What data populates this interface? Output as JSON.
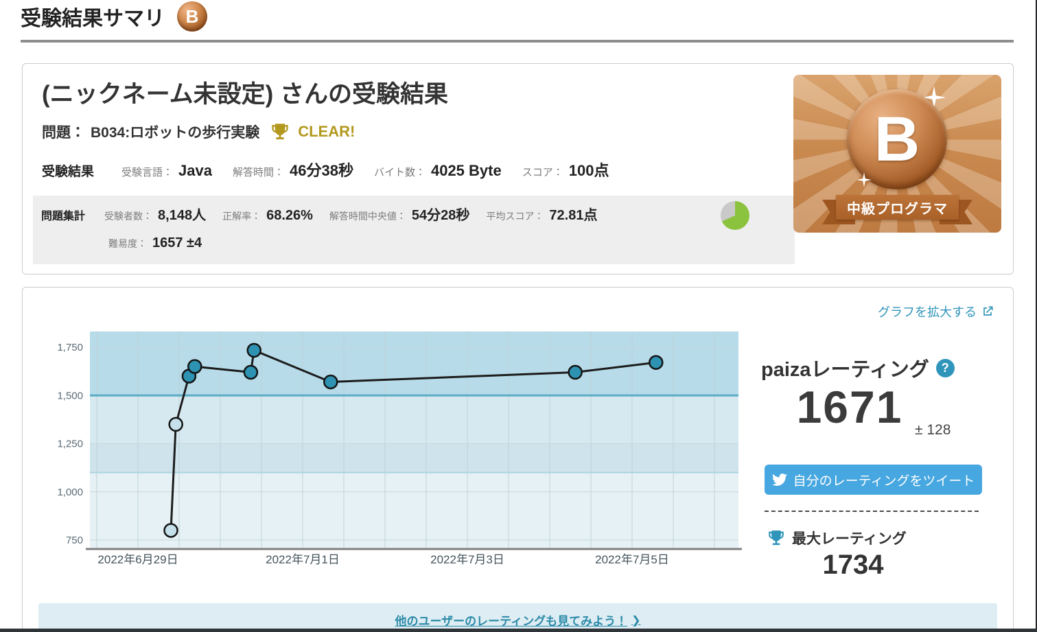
{
  "colors": {
    "accent": "#3095ba",
    "tweet_blue": "#47a7e0",
    "clear_gold": "#b3981e",
    "pie_green": "#8cc33e",
    "pie_gray": "#c9c9c9",
    "band_high": "#b7dbe9",
    "band_mid_upper": "#d7e9f0",
    "band_mid_lower": "#cee3ec",
    "band_low": "#e6f1f5",
    "ref_line_1500": "#5aacc5",
    "ref_line_1100": "#abd3e0",
    "line_color": "#1c1c1c",
    "point_teal": "#2e93b2",
    "point_light": "#c5e0ea"
  },
  "page": {
    "title": "受験結果サマリ",
    "rank_letter": "B"
  },
  "summary_card": {
    "title": "(ニックネーム未設定) さんの受験結果",
    "problem_label": "問題：",
    "problem_name": "B034:ロボットの歩行実験",
    "clear_label": "CLEAR!",
    "result": {
      "heading": "受験結果",
      "fields": [
        {
          "label": "受験言語：",
          "value": "Java"
        },
        {
          "label": "解答時間：",
          "value": "46分38秒"
        },
        {
          "label": "バイト数：",
          "value": "4025 Byte"
        },
        {
          "label": "スコア：",
          "value": "100点"
        }
      ]
    },
    "aggregate": {
      "heading": "問題集計",
      "fields": [
        {
          "label": "受験者数：",
          "value": "8,148人"
        },
        {
          "label": "正解率：",
          "value": "68.26%"
        },
        {
          "label": "解答時間中央値：",
          "value": "54分28秒"
        },
        {
          "label": "平均スコア：",
          "value": "72.81点"
        }
      ],
      "pie": {
        "percent": 68.26,
        "green": "#8cc33e",
        "gray": "#c9c9c9"
      },
      "difficulty_label": "難易度：",
      "difficulty_value": "1657 ±4"
    },
    "badge": {
      "letter": "B",
      "ribbon": "中級プログラマ"
    }
  },
  "chart_card": {
    "enlarge_link": "グラフを拡大する",
    "rating_panel": {
      "title": "paizaレーティング",
      "help": "?",
      "rating": "1671",
      "plus_minus": "± 128",
      "tweet_button": "自分のレーティングをツイート",
      "max_label": "最大レーティング",
      "max_value": "1734"
    },
    "footer_link": "他のユーザーのレーティングも見てみよう！",
    "footer_chevron": "❯"
  },
  "chart_data": {
    "type": "line",
    "title": "paiza rating history",
    "x_unit": "days since 2022-06-29",
    "points": [
      {
        "x": 0.4,
        "y": 800
      },
      {
        "x": 0.46,
        "y": 1350
      },
      {
        "x": 0.62,
        "y": 1600
      },
      {
        "x": 0.69,
        "y": 1650
      },
      {
        "x": 1.37,
        "y": 1620
      },
      {
        "x": 1.41,
        "y": 1734
      },
      {
        "x": 2.34,
        "y": 1570
      },
      {
        "x": 5.31,
        "y": 1620
      },
      {
        "x": 6.29,
        "y": 1671
      }
    ],
    "point_colors": [
      "#c5e0ea",
      "#c5e0ea",
      "#2e93b2",
      "#2e93b2",
      "#2e93b2",
      "#2e93b2",
      "#2e93b2",
      "#2e93b2",
      "#2e93b2"
    ],
    "x_tick_days": [
      0,
      2,
      4,
      6
    ],
    "x_tick_labels": [
      "2022年6月29日",
      "2022年7月1日",
      "2022年7月3日",
      "2022年7月5日"
    ],
    "y_ticks": [
      750,
      1000,
      1250,
      1500,
      1750
    ],
    "y_tick_labels": [
      "750",
      "1,000",
      "1,250",
      "1,500",
      "1,750"
    ],
    "ylim": [
      710,
      1832
    ],
    "xlim_days": [
      -0.58,
      7.29
    ],
    "grid": true,
    "x_grid_step_days": 0.5,
    "legend": false,
    "bands": [
      {
        "from": 1500,
        "to": 1832,
        "color": "#b7dbe9"
      },
      {
        "from": 1250,
        "to": 1500,
        "color": "#d7e9f0"
      },
      {
        "from": 1100,
        "to": 1250,
        "color": "#cee3ec"
      },
      {
        "from": 710,
        "to": 1100,
        "color": "#e6f1f5"
      }
    ],
    "ref_lines": [
      {
        "y": 1500,
        "color": "#5aacc5",
        "width": 3
      },
      {
        "y": 1100,
        "color": "#abd3e0",
        "width": 2
      }
    ]
  }
}
